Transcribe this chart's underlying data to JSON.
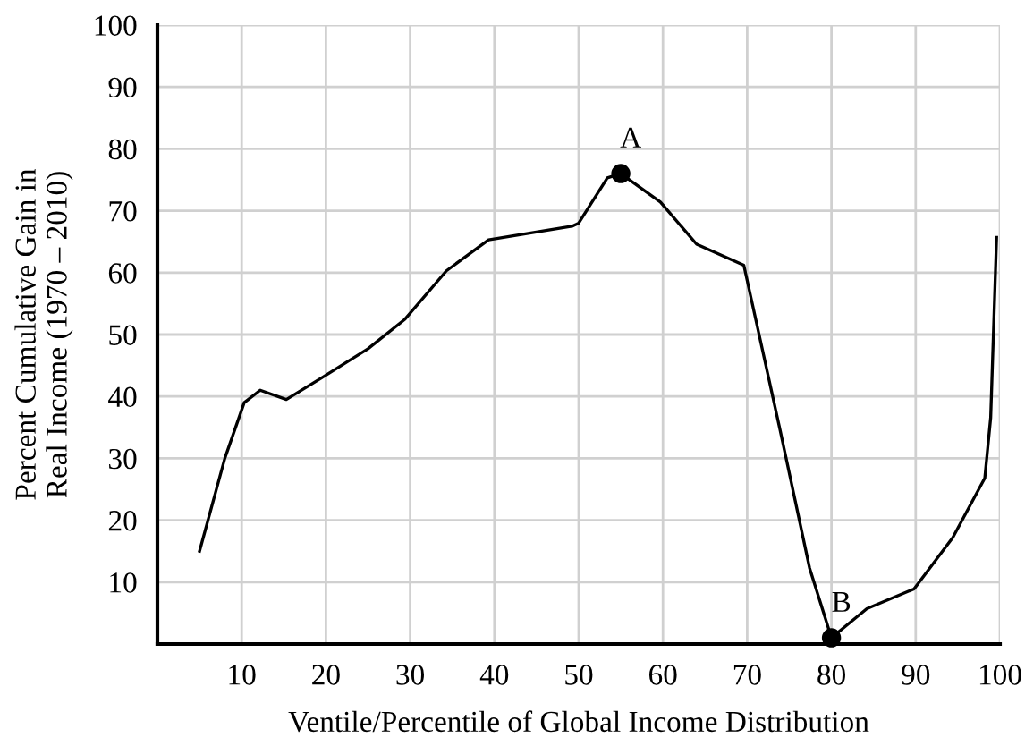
{
  "chart_data": {
    "type": "line",
    "xlabel": "Ventile/Percentile of Global Income Distribution",
    "ylabel": "Percent Cumulative Gain in\nReal Income (1970 – 2010)",
    "xlim": [
      0,
      100
    ],
    "ylim": [
      0,
      100
    ],
    "xticks": [
      10,
      20,
      30,
      40,
      50,
      60,
      70,
      80,
      90,
      100
    ],
    "yticks": [
      10,
      20,
      30,
      40,
      50,
      60,
      70,
      80,
      90,
      100
    ],
    "grid": true,
    "series": [
      {
        "color": "#000000",
        "marker": "none",
        "x": [
          5,
          8,
          10.3,
          12.2,
          15.3,
          19.5,
          25,
          29.4,
          34.3,
          39.3,
          49.2,
          50,
          53.4,
          55,
          59.7,
          64,
          69.6,
          73.9,
          77.4,
          80,
          84.2,
          89.8,
          94.4,
          98.2,
          98.9,
          99.6
        ],
        "values": [
          15,
          30,
          39,
          41,
          39.5,
          43,
          47.7,
          52.5,
          60.3,
          65.3,
          67.5,
          68,
          75.3,
          76,
          71.4,
          64.6,
          61.2,
          34.6,
          12.3,
          1,
          5.7,
          8.9,
          17.2,
          26.8,
          36.6,
          65.7
        ]
      },
      {
        "type": "scatter",
        "color": "#000000",
        "marker": "circle",
        "x": [
          55,
          80
        ],
        "values": [
          76,
          1
        ]
      }
    ],
    "annotations": [
      {
        "text": "A",
        "x": 55,
        "y": 76
      },
      {
        "text": "B",
        "x": 80,
        "y": 1
      }
    ]
  }
}
